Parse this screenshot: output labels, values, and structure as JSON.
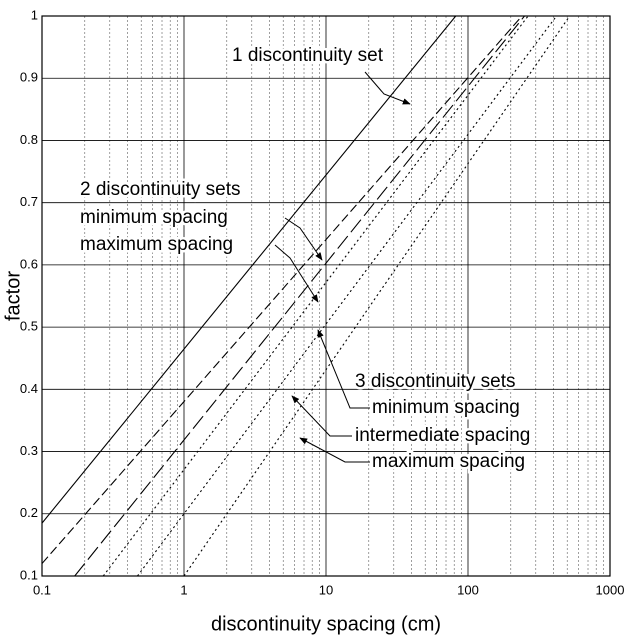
{
  "chart_data": {
    "type": "line",
    "xlabel": "discontinuity spacing (cm)",
    "ylabel": "factor",
    "log_x": true,
    "grid": true,
    "minor_grid": true,
    "xlim": [
      0.1,
      1000
    ],
    "xticks": [
      0.1,
      1,
      10,
      100,
      1000
    ],
    "ylim": [
      0.1,
      1
    ],
    "yticks": [
      0.1,
      0.2,
      0.3,
      0.4,
      0.5,
      0.6,
      0.7,
      0.8,
      0.9,
      1
    ],
    "series": [
      {
        "x": [
          0.1,
          82
        ],
        "values": [
          0.185,
          1
        ],
        "color": "#000000",
        "line_style": "solid"
      },
      {
        "x": [
          0.1,
          240
        ],
        "values": [
          0.12,
          1
        ],
        "color": "#000000",
        "line_style": "dashed"
      },
      {
        "x": [
          0.17,
          250
        ],
        "values": [
          0.1,
          1
        ],
        "color": "#000000",
        "line_style": "long-dashed"
      },
      {
        "x": [
          0.27,
          265
        ],
        "values": [
          0.1,
          1
        ],
        "color": "#000000",
        "line_style": "dotted"
      },
      {
        "x": [
          0.47,
          420
        ],
        "values": [
          0.1,
          1
        ],
        "color": "#000000",
        "line_style": "dotted"
      },
      {
        "x": [
          1.0,
          520
        ],
        "values": [
          0.1,
          1
        ],
        "color": "#000000",
        "line_style": "dotted"
      }
    ],
    "annotations": [
      "1 discontinuity set",
      "2 discontinuity sets",
      "minimum spacing",
      "maximum spacing",
      "3 discontinuity sets",
      "minimum spacing",
      "intermediate spacing",
      "maximum spacing"
    ]
  }
}
